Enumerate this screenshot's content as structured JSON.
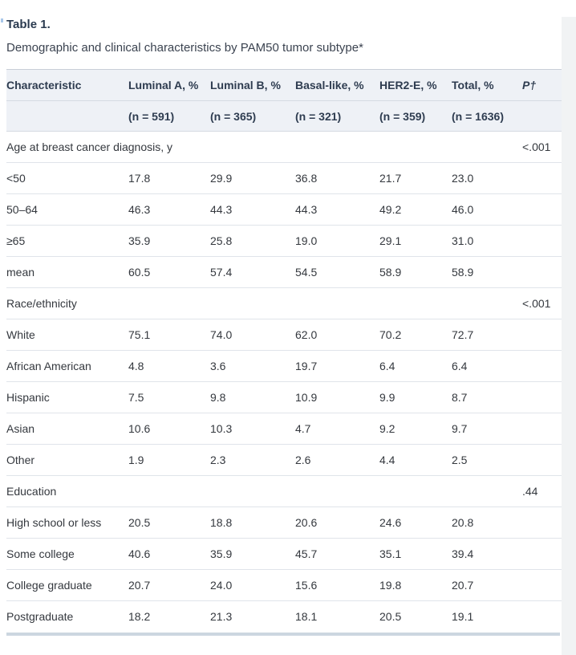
{
  "header": {
    "title": "Table 1.",
    "caption": "Demographic and clinical characteristics by PAM50 tumor subtype*"
  },
  "table": {
    "columns": [
      "Characteristic",
      "Luminal A, %",
      "Luminal B, %",
      "Basal-like, %",
      "HER2-E, %",
      "Total, %",
      "P†"
    ],
    "subheaders": [
      "",
      "(n = 591)",
      "(n = 365)",
      "(n = 321)",
      "(n = 359)",
      "(n = 1636)",
      ""
    ],
    "sections": [
      {
        "label": "Age at breast cancer diagnosis, y",
        "p_value": "<.001",
        "rows": [
          {
            "label": "<50",
            "values": [
              "17.8",
              "29.9",
              "36.8",
              "21.7",
              "23.0"
            ]
          },
          {
            "label": "50–64",
            "values": [
              "46.3",
              "44.3",
              "44.3",
              "49.2",
              "46.0"
            ]
          },
          {
            "label": "≥65",
            "values": [
              "35.9",
              "25.8",
              "19.0",
              "29.1",
              "31.0"
            ]
          },
          {
            "label": "mean",
            "values": [
              "60.5",
              "57.4",
              "54.5",
              "58.9",
              "58.9"
            ]
          }
        ]
      },
      {
        "label": "Race/ethnicity",
        "p_value": "<.001",
        "rows": [
          {
            "label": "White",
            "values": [
              "75.1",
              "74.0",
              "62.0",
              "70.2",
              "72.7"
            ]
          },
          {
            "label": "African American",
            "values": [
              "4.8",
              "3.6",
              "19.7",
              "6.4",
              "6.4"
            ]
          },
          {
            "label": "Hispanic",
            "values": [
              "7.5",
              "9.8",
              "10.9",
              "9.9",
              "8.7"
            ]
          },
          {
            "label": "Asian",
            "values": [
              "10.6",
              "10.3",
              "4.7",
              "9.2",
              "9.7"
            ]
          },
          {
            "label": "Other",
            "values": [
              "1.9",
              "2.3",
              "2.6",
              "4.4",
              "2.5"
            ]
          }
        ]
      },
      {
        "label": "Education",
        "p_value": ".44",
        "rows": [
          {
            "label": "High school or less",
            "values": [
              "20.5",
              "18.8",
              "20.6",
              "24.6",
              "20.8"
            ]
          },
          {
            "label": "Some college",
            "values": [
              "40.6",
              "35.9",
              "45.7",
              "35.1",
              "39.4"
            ]
          },
          {
            "label": "College graduate",
            "values": [
              "20.7",
              "24.0",
              "15.6",
              "19.8",
              "20.7"
            ]
          },
          {
            "label": "Postgraduate",
            "values": [
              "18.2",
              "21.3",
              "18.1",
              "20.5",
              "19.1"
            ]
          }
        ]
      }
    ]
  },
  "colors": {
    "title_text": "#2a3a4f",
    "caption_text": "#3b4350",
    "header_bg": "#eef1f6",
    "header_text": "#2e3c50",
    "body_text": "#34383e",
    "row_border": "#e0e4ea",
    "header_border": "#d5dae2",
    "table_top_border": "#c9cfd8",
    "bottom_strip": "#ccd6e0",
    "gutter": "#f1f3f4",
    "edge_fragment": "#a9c7e9"
  }
}
